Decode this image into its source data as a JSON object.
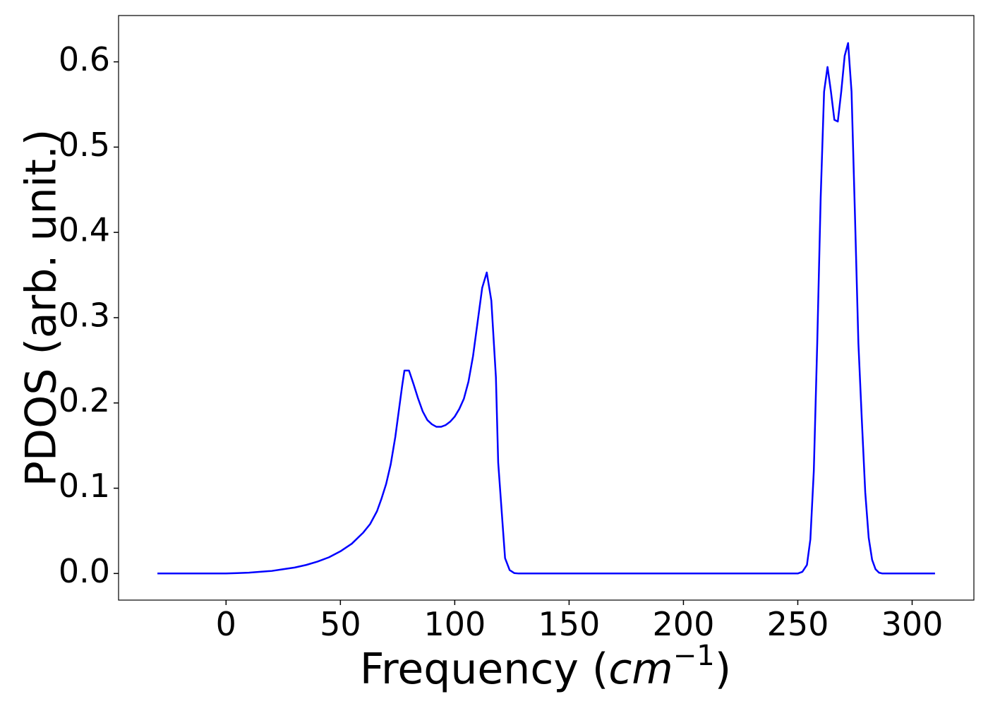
{
  "chart_data": {
    "type": "line",
    "xlabel": [
      "Frequency (",
      "cm",
      "−1",
      ")"
    ],
    "ylabel": "PDOS (arb. unit.)",
    "x": [
      -30,
      0,
      5,
      10,
      15,
      20,
      25,
      30,
      35,
      40,
      45,
      50,
      55,
      60,
      63,
      66,
      68,
      70,
      72,
      74,
      76,
      77,
      78,
      80,
      82,
      84,
      86,
      88,
      90,
      92,
      94,
      96,
      98,
      100,
      102,
      104,
      106,
      108,
      110,
      112,
      114,
      116,
      118,
      119,
      121,
      122,
      124,
      126,
      128,
      250,
      252,
      254,
      255.5,
      257,
      258.5,
      260,
      261.5,
      263,
      264.5,
      266,
      267.5,
      269,
      270.5,
      272,
      273.5,
      275,
      276.5,
      278,
      279.5,
      281,
      282.5,
      284,
      285.5,
      287,
      310
    ],
    "values": [
      0,
      0,
      0.0005,
      0.001,
      0.002,
      0.003,
      0.005,
      0.007,
      0.01,
      0.014,
      0.019,
      0.026,
      0.035,
      0.048,
      0.058,
      0.073,
      0.088,
      0.105,
      0.128,
      0.16,
      0.2,
      0.22,
      0.238,
      0.238,
      0.222,
      0.205,
      0.19,
      0.18,
      0.175,
      0.172,
      0.172,
      0.174,
      0.178,
      0.184,
      0.193,
      0.205,
      0.225,
      0.255,
      0.295,
      0.335,
      0.353,
      0.32,
      0.23,
      0.13,
      0.055,
      0.018,
      0.004,
      0.0005,
      0,
      0,
      0.002,
      0.01,
      0.04,
      0.12,
      0.27,
      0.44,
      0.565,
      0.594,
      0.565,
      0.532,
      0.53,
      0.565,
      0.607,
      0.622,
      0.565,
      0.42,
      0.27,
      0.18,
      0.095,
      0.042,
      0.016,
      0.005,
      0.001,
      0,
      0
    ],
    "color": "#0000ff",
    "xlim": [
      -47,
      327
    ],
    "ylim": [
      -0.0312,
      0.6543
    ],
    "xticks": [
      0,
      50,
      100,
      150,
      200,
      250,
      300
    ],
    "yticks": [
      {
        "value": 0,
        "label": "0.0"
      },
      0.1,
      0.2,
      0.3,
      0.4,
      0.5,
      0.6
    ]
  }
}
